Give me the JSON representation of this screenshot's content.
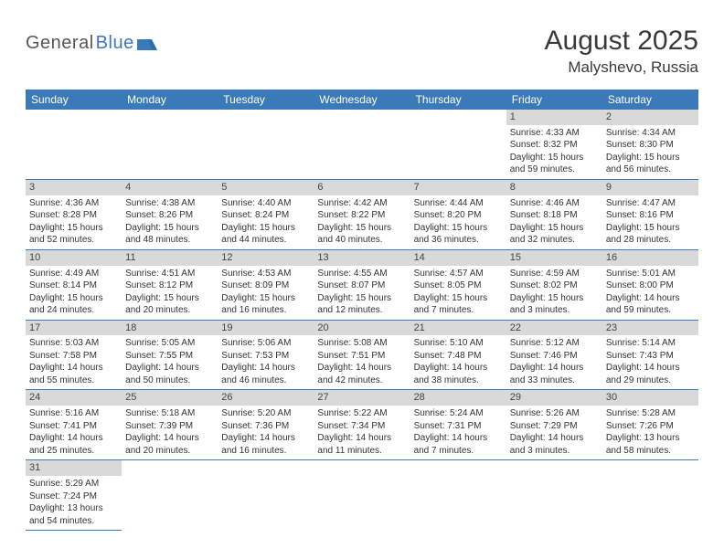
{
  "logo": {
    "part1": "General",
    "part2": "Blue"
  },
  "title": "August 2025",
  "location": "Malyshevo, Russia",
  "colors": {
    "header_bg": "#3a7ab8",
    "header_fg": "#ffffff",
    "daynum_bg": "#d9d9d9",
    "rule": "#3a7ab8",
    "text": "#333333"
  },
  "weekdays": [
    "Sunday",
    "Monday",
    "Tuesday",
    "Wednesday",
    "Thursday",
    "Friday",
    "Saturday"
  ],
  "weeks": [
    [
      {
        "n": "",
        "sr": "",
        "ss": "",
        "dl1": "",
        "dl2": ""
      },
      {
        "n": "",
        "sr": "",
        "ss": "",
        "dl1": "",
        "dl2": ""
      },
      {
        "n": "",
        "sr": "",
        "ss": "",
        "dl1": "",
        "dl2": ""
      },
      {
        "n": "",
        "sr": "",
        "ss": "",
        "dl1": "",
        "dl2": ""
      },
      {
        "n": "",
        "sr": "",
        "ss": "",
        "dl1": "",
        "dl2": ""
      },
      {
        "n": "1",
        "sr": "Sunrise: 4:33 AM",
        "ss": "Sunset: 8:32 PM",
        "dl1": "Daylight: 15 hours",
        "dl2": "and 59 minutes."
      },
      {
        "n": "2",
        "sr": "Sunrise: 4:34 AM",
        "ss": "Sunset: 8:30 PM",
        "dl1": "Daylight: 15 hours",
        "dl2": "and 56 minutes."
      }
    ],
    [
      {
        "n": "3",
        "sr": "Sunrise: 4:36 AM",
        "ss": "Sunset: 8:28 PM",
        "dl1": "Daylight: 15 hours",
        "dl2": "and 52 minutes."
      },
      {
        "n": "4",
        "sr": "Sunrise: 4:38 AM",
        "ss": "Sunset: 8:26 PM",
        "dl1": "Daylight: 15 hours",
        "dl2": "and 48 minutes."
      },
      {
        "n": "5",
        "sr": "Sunrise: 4:40 AM",
        "ss": "Sunset: 8:24 PM",
        "dl1": "Daylight: 15 hours",
        "dl2": "and 44 minutes."
      },
      {
        "n": "6",
        "sr": "Sunrise: 4:42 AM",
        "ss": "Sunset: 8:22 PM",
        "dl1": "Daylight: 15 hours",
        "dl2": "and 40 minutes."
      },
      {
        "n": "7",
        "sr": "Sunrise: 4:44 AM",
        "ss": "Sunset: 8:20 PM",
        "dl1": "Daylight: 15 hours",
        "dl2": "and 36 minutes."
      },
      {
        "n": "8",
        "sr": "Sunrise: 4:46 AM",
        "ss": "Sunset: 8:18 PM",
        "dl1": "Daylight: 15 hours",
        "dl2": "and 32 minutes."
      },
      {
        "n": "9",
        "sr": "Sunrise: 4:47 AM",
        "ss": "Sunset: 8:16 PM",
        "dl1": "Daylight: 15 hours",
        "dl2": "and 28 minutes."
      }
    ],
    [
      {
        "n": "10",
        "sr": "Sunrise: 4:49 AM",
        "ss": "Sunset: 8:14 PM",
        "dl1": "Daylight: 15 hours",
        "dl2": "and 24 minutes."
      },
      {
        "n": "11",
        "sr": "Sunrise: 4:51 AM",
        "ss": "Sunset: 8:12 PM",
        "dl1": "Daylight: 15 hours",
        "dl2": "and 20 minutes."
      },
      {
        "n": "12",
        "sr": "Sunrise: 4:53 AM",
        "ss": "Sunset: 8:09 PM",
        "dl1": "Daylight: 15 hours",
        "dl2": "and 16 minutes."
      },
      {
        "n": "13",
        "sr": "Sunrise: 4:55 AM",
        "ss": "Sunset: 8:07 PM",
        "dl1": "Daylight: 15 hours",
        "dl2": "and 12 minutes."
      },
      {
        "n": "14",
        "sr": "Sunrise: 4:57 AM",
        "ss": "Sunset: 8:05 PM",
        "dl1": "Daylight: 15 hours",
        "dl2": "and 7 minutes."
      },
      {
        "n": "15",
        "sr": "Sunrise: 4:59 AM",
        "ss": "Sunset: 8:02 PM",
        "dl1": "Daylight: 15 hours",
        "dl2": "and 3 minutes."
      },
      {
        "n": "16",
        "sr": "Sunrise: 5:01 AM",
        "ss": "Sunset: 8:00 PM",
        "dl1": "Daylight: 14 hours",
        "dl2": "and 59 minutes."
      }
    ],
    [
      {
        "n": "17",
        "sr": "Sunrise: 5:03 AM",
        "ss": "Sunset: 7:58 PM",
        "dl1": "Daylight: 14 hours",
        "dl2": "and 55 minutes."
      },
      {
        "n": "18",
        "sr": "Sunrise: 5:05 AM",
        "ss": "Sunset: 7:55 PM",
        "dl1": "Daylight: 14 hours",
        "dl2": "and 50 minutes."
      },
      {
        "n": "19",
        "sr": "Sunrise: 5:06 AM",
        "ss": "Sunset: 7:53 PM",
        "dl1": "Daylight: 14 hours",
        "dl2": "and 46 minutes."
      },
      {
        "n": "20",
        "sr": "Sunrise: 5:08 AM",
        "ss": "Sunset: 7:51 PM",
        "dl1": "Daylight: 14 hours",
        "dl2": "and 42 minutes."
      },
      {
        "n": "21",
        "sr": "Sunrise: 5:10 AM",
        "ss": "Sunset: 7:48 PM",
        "dl1": "Daylight: 14 hours",
        "dl2": "and 38 minutes."
      },
      {
        "n": "22",
        "sr": "Sunrise: 5:12 AM",
        "ss": "Sunset: 7:46 PM",
        "dl1": "Daylight: 14 hours",
        "dl2": "and 33 minutes."
      },
      {
        "n": "23",
        "sr": "Sunrise: 5:14 AM",
        "ss": "Sunset: 7:43 PM",
        "dl1": "Daylight: 14 hours",
        "dl2": "and 29 minutes."
      }
    ],
    [
      {
        "n": "24",
        "sr": "Sunrise: 5:16 AM",
        "ss": "Sunset: 7:41 PM",
        "dl1": "Daylight: 14 hours",
        "dl2": "and 25 minutes."
      },
      {
        "n": "25",
        "sr": "Sunrise: 5:18 AM",
        "ss": "Sunset: 7:39 PM",
        "dl1": "Daylight: 14 hours",
        "dl2": "and 20 minutes."
      },
      {
        "n": "26",
        "sr": "Sunrise: 5:20 AM",
        "ss": "Sunset: 7:36 PM",
        "dl1": "Daylight: 14 hours",
        "dl2": "and 16 minutes."
      },
      {
        "n": "27",
        "sr": "Sunrise: 5:22 AM",
        "ss": "Sunset: 7:34 PM",
        "dl1": "Daylight: 14 hours",
        "dl2": "and 11 minutes."
      },
      {
        "n": "28",
        "sr": "Sunrise: 5:24 AM",
        "ss": "Sunset: 7:31 PM",
        "dl1": "Daylight: 14 hours",
        "dl2": "and 7 minutes."
      },
      {
        "n": "29",
        "sr": "Sunrise: 5:26 AM",
        "ss": "Sunset: 7:29 PM",
        "dl1": "Daylight: 14 hours",
        "dl2": "and 3 minutes."
      },
      {
        "n": "30",
        "sr": "Sunrise: 5:28 AM",
        "ss": "Sunset: 7:26 PM",
        "dl1": "Daylight: 13 hours",
        "dl2": "and 58 minutes."
      }
    ],
    [
      {
        "n": "31",
        "sr": "Sunrise: 5:29 AM",
        "ss": "Sunset: 7:24 PM",
        "dl1": "Daylight: 13 hours",
        "dl2": "and 54 minutes."
      },
      {
        "n": "",
        "sr": "",
        "ss": "",
        "dl1": "",
        "dl2": ""
      },
      {
        "n": "",
        "sr": "",
        "ss": "",
        "dl1": "",
        "dl2": ""
      },
      {
        "n": "",
        "sr": "",
        "ss": "",
        "dl1": "",
        "dl2": ""
      },
      {
        "n": "",
        "sr": "",
        "ss": "",
        "dl1": "",
        "dl2": ""
      },
      {
        "n": "",
        "sr": "",
        "ss": "",
        "dl1": "",
        "dl2": ""
      },
      {
        "n": "",
        "sr": "",
        "ss": "",
        "dl1": "",
        "dl2": ""
      }
    ]
  ]
}
